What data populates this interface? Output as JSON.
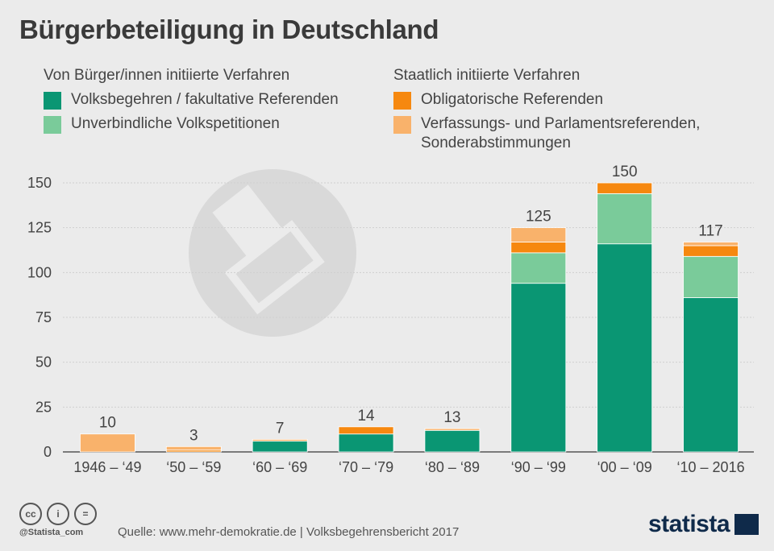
{
  "title": "Bürgerbeteiligung in Deutschland",
  "legend": {
    "left_title": "Von Bürger/innen initiierte Verfahren",
    "right_title": "Staatlich initiierte Verfahren",
    "items": [
      {
        "label": "Volksbegehren / fakultative Referenden",
        "color": "#0a9673"
      },
      {
        "label": "Unverbindliche Volkspetitionen",
        "color": "#7acb9a"
      },
      {
        "label": "Obligatorische Referenden",
        "color": "#f6880f"
      },
      {
        "label": "Verfassungs- und Parlamentsreferenden,",
        "label2": "Sonderabstimmungen",
        "color": "#f9b26b"
      }
    ]
  },
  "chart_data": {
    "type": "bar",
    "stacked": true,
    "categories": [
      "1946 – ‘49",
      "‘50 – ‘59",
      "‘60 – ‘69",
      "‘70 – ‘79",
      "‘80 – ‘89",
      "‘90 – ‘99",
      "‘00 – ‘09",
      "‘10 – 2016"
    ],
    "series": [
      {
        "name": "Volksbegehren / fakultative Referenden",
        "color": "#0a9673",
        "values": [
          0,
          0,
          6,
          10,
          12,
          94,
          116,
          86
        ]
      },
      {
        "name": "Unverbindliche Volkspetitionen",
        "color": "#7acb9a",
        "values": [
          0,
          0,
          0,
          0,
          0,
          17,
          28,
          23
        ]
      },
      {
        "name": "Obligatorische Referenden",
        "color": "#f6880f",
        "values": [
          0,
          1,
          0,
          4,
          0,
          6,
          6,
          6
        ]
      },
      {
        "name": "Verfassungs- und Parlamentsreferenden, Sonderabstimmungen",
        "color": "#f9b26b",
        "values": [
          10,
          2,
          1,
          0,
          1,
          8,
          0,
          2
        ]
      }
    ],
    "totals": [
      "10",
      "3",
      "7",
      "14",
      "13",
      "125",
      "150",
      "117"
    ],
    "yticks": [
      "0",
      "25",
      "50",
      "75",
      "100",
      "125",
      "150"
    ],
    "ylim": [
      0,
      150
    ]
  },
  "footer": {
    "handle": "@Statista_com",
    "source": "Quelle: www.mehr-demokratie.de | Volksbegehrensbericht 2017",
    "logo": "statista"
  }
}
